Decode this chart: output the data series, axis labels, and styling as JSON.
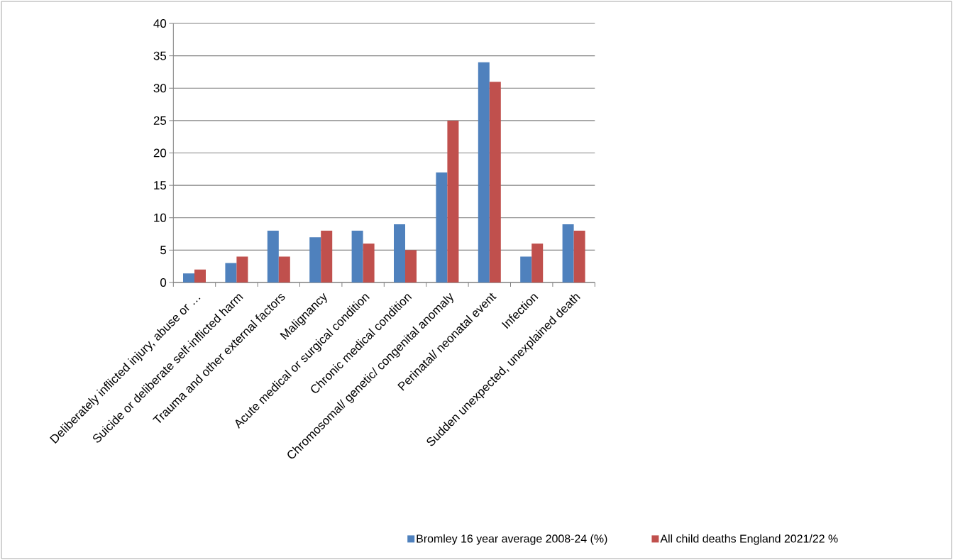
{
  "chart_data": {
    "type": "bar",
    "categories": [
      "Deliberately inflicted injury, abuse or …",
      "Suicide or deliberate self-inflicted harm",
      "Trauma and other external factors",
      "Malignancy",
      "Acute medical or surgical condition",
      "Chronic medical condition",
      "Chromosomal/ genetic/ congenital anomaly",
      "Perinatal/ neonatal event",
      "Infection",
      "Sudden unexpected, unexplained death"
    ],
    "series": [
      {
        "name": "Bromley 16 year average 2008-24  (%)",
        "color": "#4f81bd",
        "values": [
          1.4,
          3,
          8,
          7,
          8,
          9,
          17,
          34,
          4,
          9
        ]
      },
      {
        "name": "All child deaths England 2021/22  %",
        "color": "#c0504d",
        "values": [
          2,
          4,
          4,
          8,
          6,
          5,
          25,
          31,
          6,
          8
        ]
      }
    ],
    "ylim": [
      0,
      40
    ],
    "yticks": [
      0,
      5,
      10,
      15,
      20,
      25,
      30,
      35,
      40
    ],
    "grid": "y",
    "legend": "bottom"
  }
}
